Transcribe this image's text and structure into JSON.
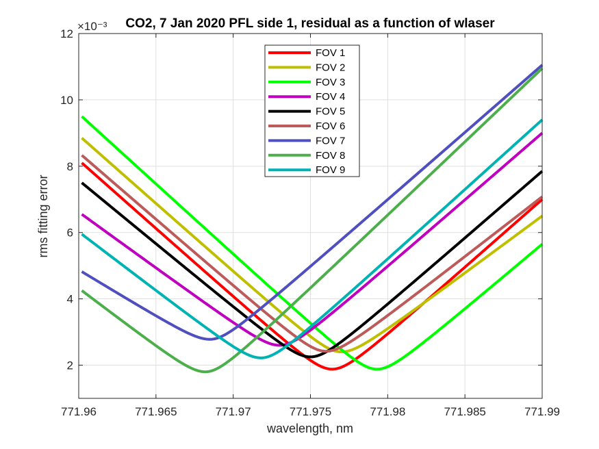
{
  "chart_data": {
    "type": "line",
    "title": "CO2, 7 Jan 2020 PFL side 1, residual as a function of wlaser",
    "xlabel": "wavelength, nm",
    "ylabel": "rms fitting error",
    "y_exponent_label": "×10⁻³",
    "xlim": [
      771.96,
      771.99
    ],
    "ylim": [
      1,
      12
    ],
    "xticks": [
      "771.96",
      "771.965",
      "771.97",
      "771.975",
      "771.98",
      "771.985",
      "771.99"
    ],
    "yticks": [
      "2",
      "4",
      "6",
      "8",
      "10",
      "12"
    ],
    "grid": true,
    "legend_position": "top-center",
    "series": [
      {
        "name": "FOV 1",
        "color": "#ff0000",
        "x_min": 771.9764,
        "y_min": 1.88,
        "y_start": 8.1,
        "y_end": 7.0
      },
      {
        "name": "FOV 2",
        "color": "#bfbf00",
        "x_min": 771.977,
        "y_min": 2.4,
        "y_start": 8.85,
        "y_end": 6.5
      },
      {
        "name": "FOV 3",
        "color": "#00ff00",
        "x_min": 771.9793,
        "y_min": 1.88,
        "y_start": 9.5,
        "y_end": 5.65
      },
      {
        "name": "FOV 4",
        "color": "#bf00bf",
        "x_min": 771.973,
        "y_min": 2.6,
        "y_start": 6.55,
        "y_end": 9.0
      },
      {
        "name": "FOV 5",
        "color": "#000000",
        "x_min": 771.975,
        "y_min": 2.25,
        "y_start": 7.5,
        "y_end": 7.85
      },
      {
        "name": "FOV 6",
        "color": "#bd5b5b",
        "x_min": 771.976,
        "y_min": 2.42,
        "y_start": 8.33,
        "y_end": 7.08
      },
      {
        "name": "FOV 7",
        "color": "#4f4fbf",
        "x_min": 771.9685,
        "y_min": 2.78,
        "y_start": 4.82,
        "y_end": 11.05
      },
      {
        "name": "FOV 8",
        "color": "#4caf4c",
        "x_min": 771.9682,
        "y_min": 1.8,
        "y_start": 4.25,
        "y_end": 10.95
      },
      {
        "name": "FOV 9",
        "color": "#00b3b3",
        "x_min": 771.9718,
        "y_min": 2.22,
        "y_start": 5.95,
        "y_end": 9.4
      }
    ]
  }
}
